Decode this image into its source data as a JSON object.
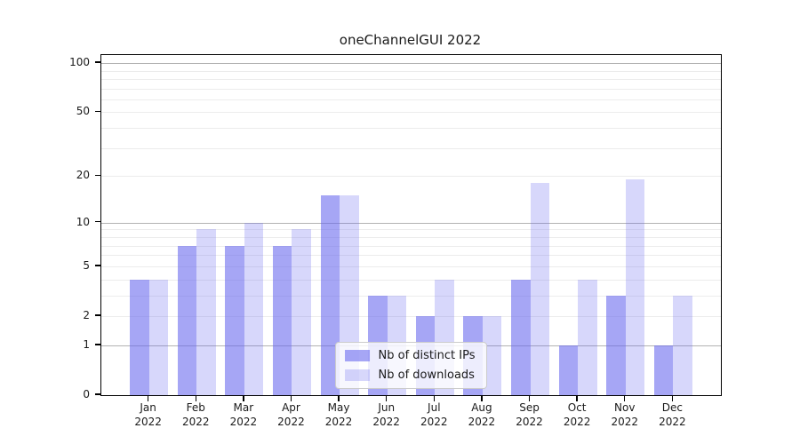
{
  "chart_data": {
    "type": "bar",
    "title": "oneChannelGUI 2022",
    "categories": [
      "Jan 2022",
      "Feb 2022",
      "Mar 2022",
      "Apr 2022",
      "May 2022",
      "Jun 2022",
      "Jul 2022",
      "Aug 2022",
      "Sep 2022",
      "Oct 2022",
      "Nov 2022",
      "Dec 2022"
    ],
    "series": [
      {
        "name": "Nb of distinct IPs",
        "color": "rgba(102,102,238,0.58)",
        "values": [
          4,
          7,
          7,
          7,
          15,
          3,
          2,
          2,
          4,
          1,
          3,
          1
        ]
      },
      {
        "name": "Nb of downloads",
        "color": "rgba(102,102,238,0.26)",
        "values": [
          4,
          9,
          10,
          9,
          15,
          3,
          4,
          2,
          18,
          4,
          19,
          3
        ]
      }
    ],
    "yscale": "log1p",
    "ylim": [
      0,
      112
    ],
    "yticks": [
      0,
      1,
      2,
      5,
      10,
      20,
      50,
      100
    ],
    "grid": {
      "decade_lines": [
        1,
        10,
        100
      ],
      "minor_lines": [
        2,
        3,
        4,
        5,
        6,
        7,
        8,
        9,
        20,
        30,
        40,
        50,
        60,
        70,
        80,
        90
      ],
      "decade_color": "#b2b2b2",
      "minor_color": "#ececec"
    },
    "legend": {
      "position": "lower center",
      "labels": [
        "Nb of distinct IPs",
        "Nb of downloads"
      ]
    },
    "xlabel": "",
    "ylabel": ""
  },
  "colors": {
    "axis": "#000000",
    "text": "#1a1a1a",
    "background": "#ffffff"
  }
}
